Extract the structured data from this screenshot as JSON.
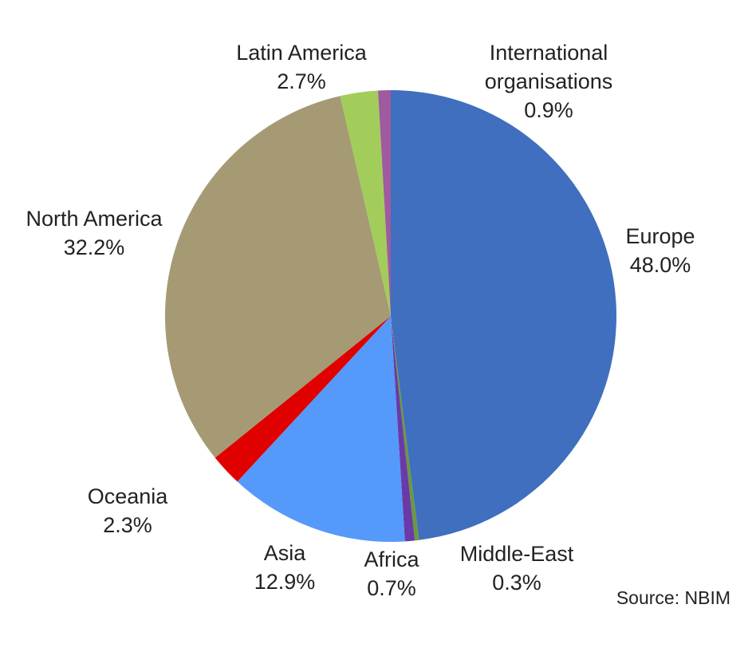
{
  "chart_data": {
    "type": "pie",
    "categories": [
      "Europe",
      "Middle-East",
      "Africa",
      "Asia",
      "Oceania",
      "North America",
      "Latin America",
      "International organisations"
    ],
    "values": [
      48.0,
      0.3,
      0.7,
      12.9,
      2.3,
      32.2,
      2.7,
      0.9
    ],
    "value_labels": [
      "48.0%",
      "0.3%",
      "0.7%",
      "12.9%",
      "2.3%",
      "32.2%",
      "2.7%",
      "0.9%"
    ],
    "colors": [
      "#3f6fbe",
      "#6a9a3a",
      "#6a3aa8",
      "#5599fb",
      "#e00000",
      "#a59a73",
      "#a2cd5a",
      "#a05a9e"
    ],
    "source": "Source: NBIM"
  }
}
